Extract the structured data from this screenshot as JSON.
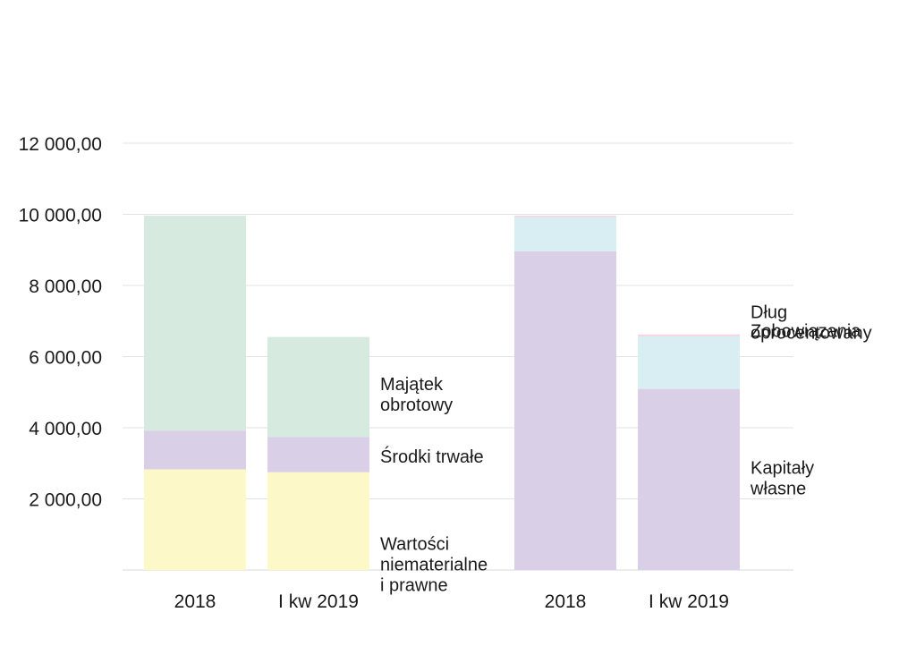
{
  "chart_data": {
    "type": "bar",
    "stacked": true,
    "grid": "horizontal",
    "ylim": [
      0,
      12000
    ],
    "yticks": [
      "2 000,00",
      "4 000,00",
      "6 000,00",
      "8 000,00",
      "10 000,00",
      "12 000,00"
    ],
    "ytick_values": [
      2000,
      4000,
      6000,
      8000,
      10000,
      12000
    ],
    "groups": [
      {
        "categories": [
          "2018",
          "I kw 2019"
        ],
        "series": [
          {
            "name": "Wartości niematerialne i prawne",
            "label_lines": [
              "Wartości",
              "niematerialne",
              "i prawne"
            ],
            "color": "#fdf8c8",
            "values": [
              2830,
              2750
            ]
          },
          {
            "name": "Środki trwałe",
            "label_lines": [
              "Środki trwałe"
            ],
            "color": "#d9cfe6",
            "values": [
              1090,
              990
            ]
          },
          {
            "name": "Majątek obrotowy",
            "label_lines": [
              "Majątek",
              "obrotowy"
            ],
            "color": "#d6eadf",
            "values": [
              6040,
              2810
            ]
          }
        ]
      },
      {
        "categories": [
          "2018",
          "I kw 2019"
        ],
        "series": [
          {
            "name": "Kapitały własne",
            "label_lines": [
              "Kapitały",
              "własne"
            ],
            "color": "#d9cfe6",
            "values": [
              8960,
              5090
            ]
          },
          {
            "name": "Zobowiązania",
            "label_lines": [
              "Zobowiązania"
            ],
            "color": "#d8eef2",
            "values": [
              960,
              1480
            ]
          },
          {
            "name": "Dług oprocentowany",
            "label_lines": [
              "Dług",
              "oprocentowany"
            ],
            "color": "#f2d5e1",
            "values": [
              40,
              50
            ]
          }
        ]
      }
    ]
  }
}
